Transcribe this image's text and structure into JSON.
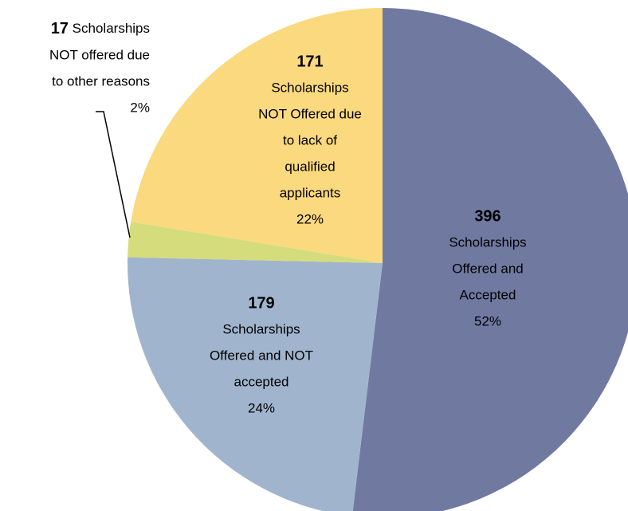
{
  "chart_data": {
    "type": "pie",
    "categories": [
      [
        "Scholarships",
        "Offered and",
        "Accepted"
      ],
      [
        "Scholarships",
        "Offered and NOT",
        "accepted"
      ],
      [
        "Scholarships",
        "NOT offered due",
        "to other reasons"
      ],
      [
        "Scholarships",
        "NOT Offered due",
        "to lack of",
        "qualified",
        "applicants"
      ]
    ],
    "values": [
      396,
      179,
      17,
      171
    ],
    "percent_labels": [
      "52%",
      "24%",
      "2%",
      "22%"
    ],
    "colors": [
      "#7079a0",
      "#a0b5cd",
      "#d5dc7b",
      "#fad97f"
    ],
    "start_angle": 90,
    "direction": "clockwise"
  }
}
